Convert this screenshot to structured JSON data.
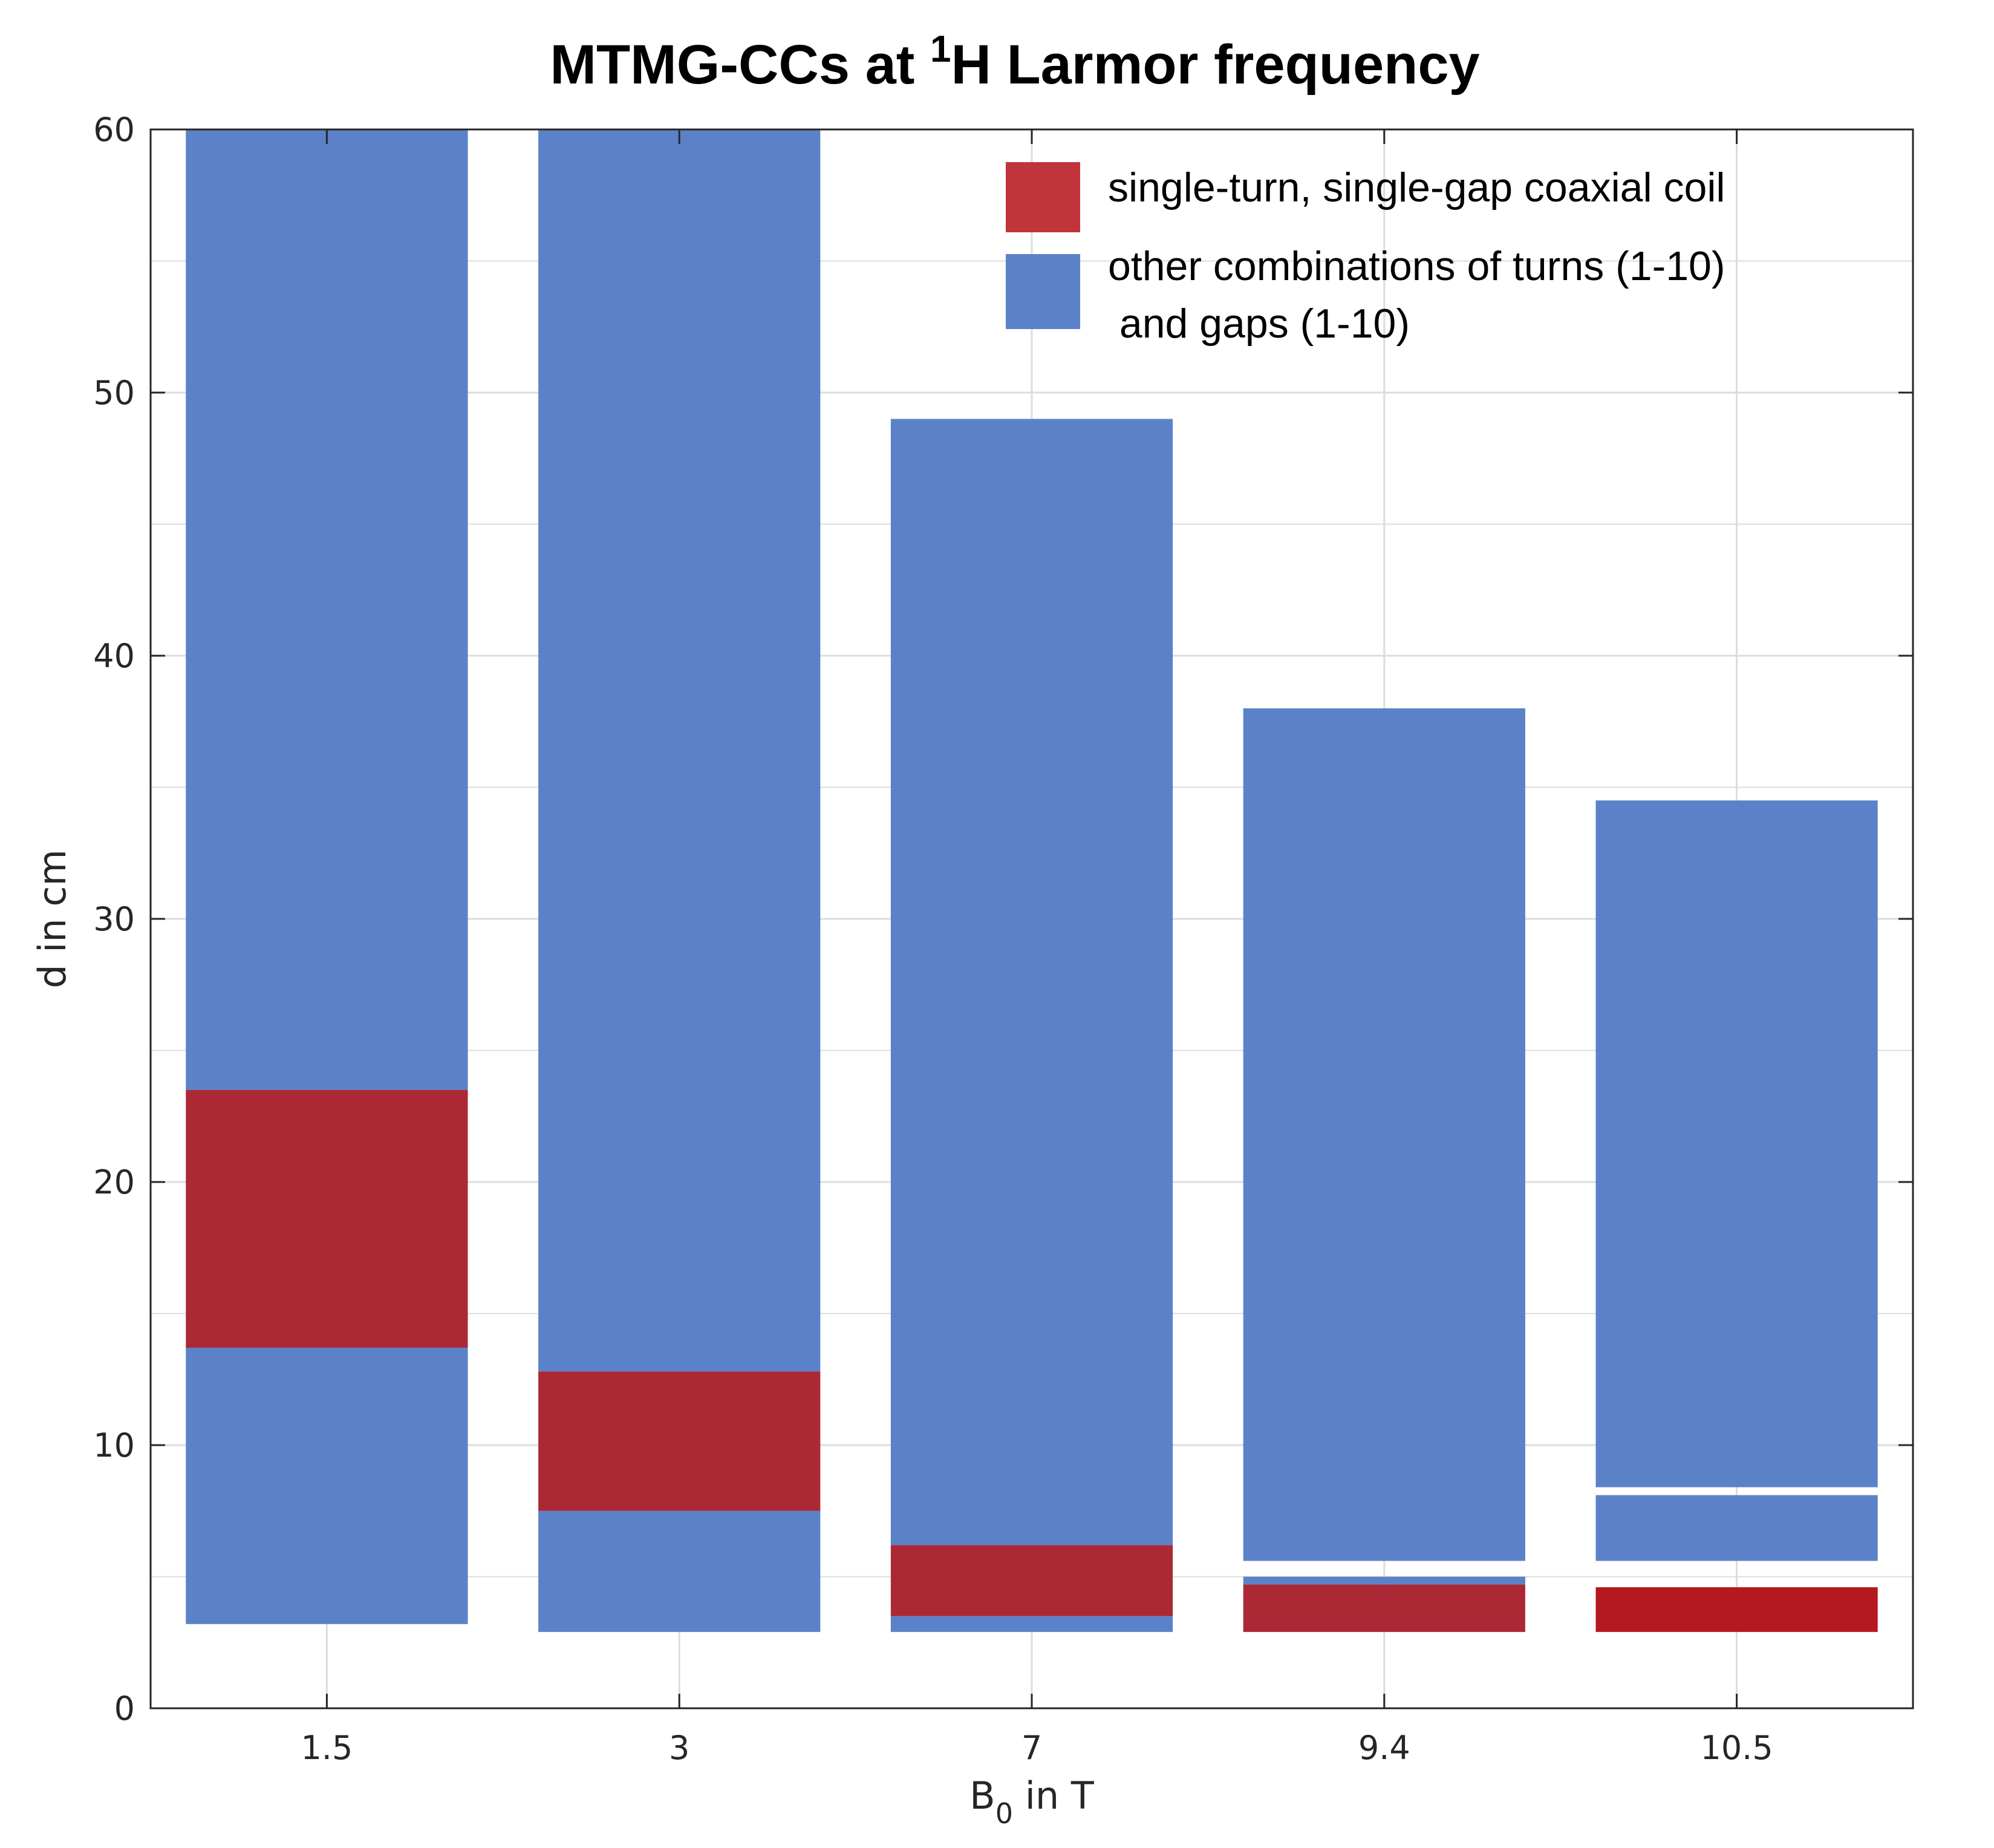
{
  "chart_data": {
    "type": "bar",
    "title": {
      "main": "MTMG-CCs at ",
      "superscript": "1",
      "rest": "H Larmor frequency"
    },
    "xlabel": {
      "main": "B",
      "subscript": "0",
      "rest": " in T"
    },
    "ylabel": "d in cm",
    "ylim": [
      0,
      60
    ],
    "yticks": [
      "0",
      "10",
      "20",
      "30",
      "40",
      "50",
      "60"
    ],
    "ytick_values": [
      0,
      10,
      20,
      30,
      40,
      50,
      60
    ],
    "grid": true,
    "legend_position": "top-right",
    "categories": [
      "1.5",
      "3",
      "7",
      "9.4",
      "10.5"
    ],
    "colors": {
      "single": "#ab2835",
      "single_alt": "#b4191f",
      "other": "#5b82c9",
      "legend_single": "#c1343b",
      "axis": "#262626",
      "grid": "#dcdcdc"
    },
    "series": [
      {
        "name": "single-turn, single-gap coaxial coil",
        "color_key": "single",
        "ranges": [
          [
            13.7,
            23.5
          ],
          [
            7.5,
            12.8
          ],
          [
            3.5,
            6.2
          ],
          [
            2.9,
            4.7
          ],
          [
            2.9,
            4.6
          ]
        ]
      },
      {
        "name": "other combinations of turns (1-10) and gaps (1-10)",
        "color_key": "other",
        "ranges": [
          [
            [
              3.2,
              13.7
            ],
            [
              23.5,
              60
            ]
          ],
          [
            [
              2.9,
              7.5
            ],
            [
              12.8,
              60
            ]
          ],
          [
            [
              2.9,
              3.5
            ],
            [
              6.2,
              49
            ]
          ],
          [
            [
              4.7,
              5.0
            ],
            [
              5.6,
              38
            ]
          ],
          [
            [
              5.6,
              8.1
            ],
            [
              8.4,
              34.5
            ]
          ]
        ]
      }
    ],
    "legend": {
      "single_label": "single-turn, single-gap coaxial coil",
      "other_label_line1": "other combinations of turns (1-10)",
      "other_label_line2": " and gaps (1-10)"
    }
  }
}
